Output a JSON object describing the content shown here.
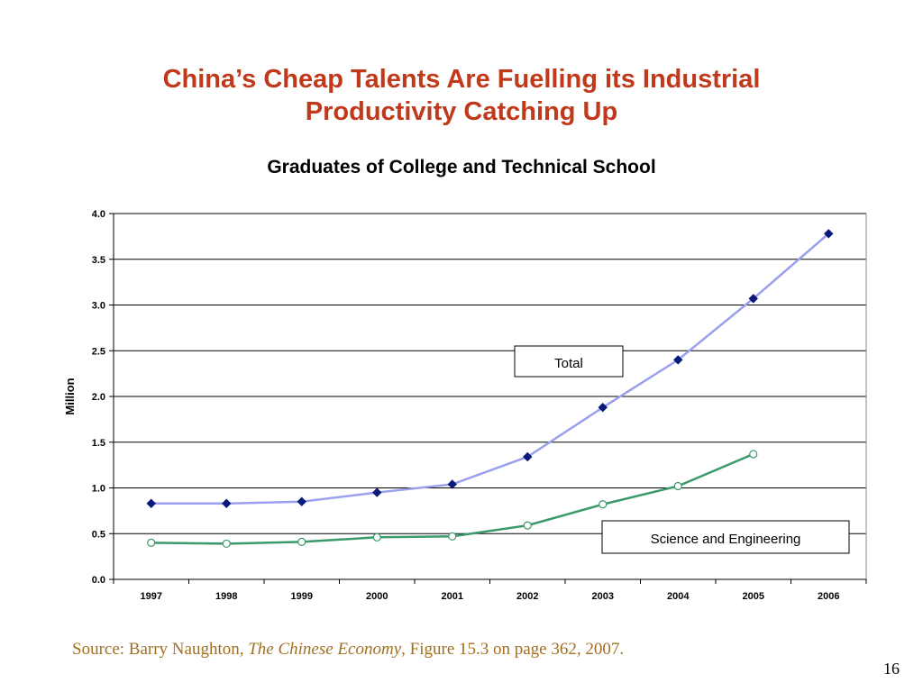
{
  "slide": {
    "title_line1": "China’s Cheap Talents Are Fuelling its Industrial",
    "title_line2": "Productivity Catching Up",
    "source_prefix": "Source: Barry Naughton, ",
    "source_book": "The Chinese Economy",
    "source_suffix": ", Figure 15.3 on page 362, 2007.",
    "page_number": "16"
  },
  "chart_data": {
    "type": "line",
    "title": "Graduates of College and Technical School",
    "xlabel": "",
    "ylabel": "Million",
    "ylim": [
      0,
      4.0
    ],
    "yticks": [
      "0.0",
      "0.5",
      "1.0",
      "1.5",
      "2.0",
      "2.5",
      "3.0",
      "3.5",
      "4.0"
    ],
    "categories": [
      "1997",
      "1998",
      "1999",
      "2000",
      "2001",
      "2002",
      "2003",
      "2004",
      "2005",
      "2006"
    ],
    "grid": "horizontal",
    "series": [
      {
        "name": "Total",
        "values": [
          0.83,
          0.83,
          0.85,
          0.95,
          1.04,
          1.34,
          1.88,
          2.4,
          3.07,
          3.78
        ],
        "line_color": "#9aa0ee",
        "marker": "diamond",
        "marker_color": "#0a1a7a"
      },
      {
        "name": "Science and Engineering",
        "values": [
          0.4,
          0.39,
          0.41,
          0.46,
          0.47,
          0.59,
          0.82,
          1.02,
          1.37,
          null
        ],
        "line_color": "#3a9a6a",
        "marker": "circle",
        "marker_color": "#ffffff"
      }
    ]
  }
}
